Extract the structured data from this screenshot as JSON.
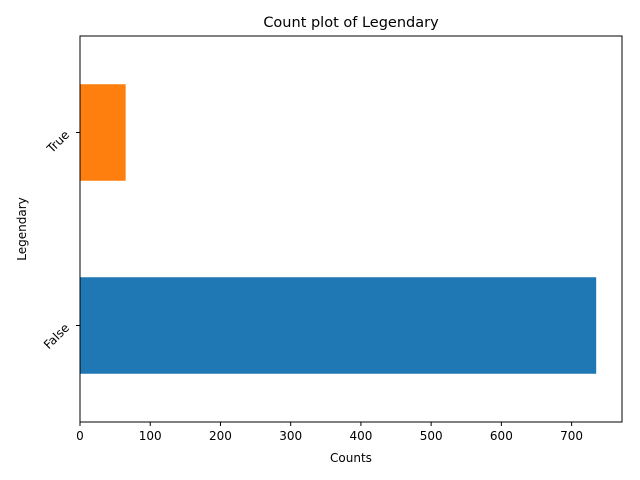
{
  "chart_data": {
    "type": "bar",
    "orientation": "horizontal",
    "title": "Count plot of Legendary",
    "xlabel": "Counts",
    "ylabel": "Legendary",
    "categories": [
      "False",
      "True"
    ],
    "values": [
      735,
      65
    ],
    "colors": [
      "#1f77b4",
      "#ff7f0e"
    ],
    "xlim": [
      0,
      771.75
    ],
    "xticks": [
      0,
      100,
      200,
      300,
      400,
      500,
      600,
      700
    ],
    "grid": false,
    "legend": "none"
  }
}
